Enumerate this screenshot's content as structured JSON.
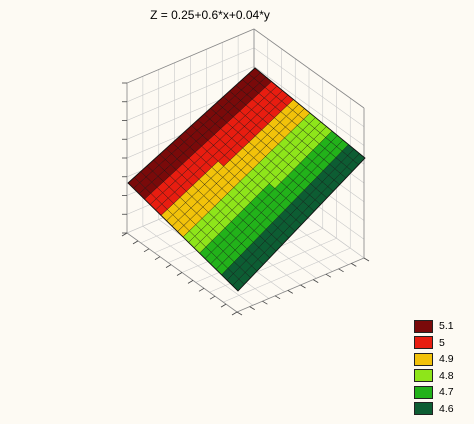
{
  "chart_data": {
    "type": "surface3d",
    "title": "Z = 0.25+0.6*x+0.04*y",
    "equation": {
      "intercept": 0.25,
      "x_coef": 0.6,
      "y_coef": 0.04
    },
    "grid": true,
    "legend_position": "bottom-right",
    "legend": [
      {
        "label": "5.1",
        "color": "#7a0a0a"
      },
      {
        "label": "5",
        "color": "#e81d10"
      },
      {
        "label": "4.9",
        "color": "#f2c20a"
      },
      {
        "label": "4.8",
        "color": "#8ee51a"
      },
      {
        "label": "4.7",
        "color": "#22b21a"
      },
      {
        "label": "4.6",
        "color": "#0d5d33"
      }
    ]
  }
}
